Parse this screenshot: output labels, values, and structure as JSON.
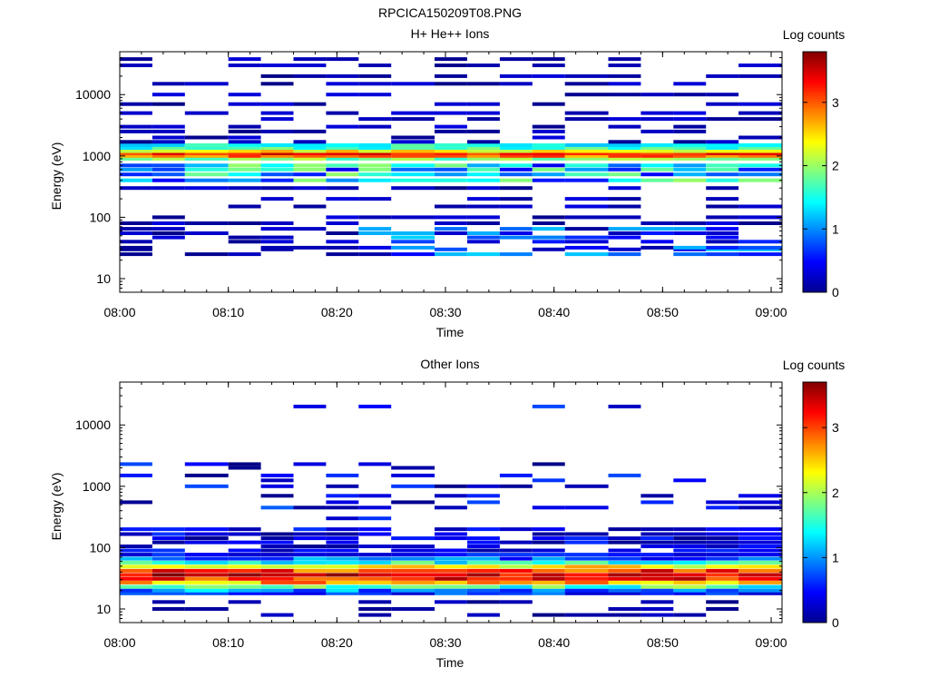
{
  "figure": {
    "title": "RPCICA150209T08.PNG",
    "scale_label": "Log counts"
  },
  "chart_data": [
    {
      "type": "heatmap",
      "title": "H+ He++ Ions",
      "xlabel": "Time",
      "ylabel": "Energy (eV)",
      "xlim": [
        "08:00",
        "09:01"
      ],
      "x_tick_labels": [
        "08:00",
        "08:10",
        "08:20",
        "08:30",
        "08:40",
        "08:50",
        "09:00"
      ],
      "yscale": "log",
      "ylim": [
        6,
        50000
      ],
      "y_tick_labels": [
        "10",
        "100",
        "1000",
        "10000"
      ],
      "colorbar": {
        "label": "Log counts",
        "range": [
          0,
          3.8
        ],
        "tick_labels": [
          "0",
          "1",
          "2",
          "3"
        ],
        "colormap": "jet"
      },
      "time_bins": [
        "08:00",
        "08:03",
        "08:06",
        "08:10",
        "08:13",
        "08:16",
        "08:19",
        "08:22",
        "08:25",
        "08:29",
        "08:32",
        "08:35",
        "08:38",
        "08:41",
        "08:45",
        "08:48",
        "08:51",
        "08:54",
        "08:57"
      ],
      "energy_levels_eV": [
        25,
        30,
        32,
        40,
        47,
        55,
        65,
        80,
        100,
        150,
        200,
        300,
        400,
        500,
        600,
        700,
        900,
        1000,
        1100,
        1200,
        1350,
        1500,
        1700,
        2000,
        2500,
        3000,
        4000,
        5000,
        7000,
        10000,
        15000,
        20000,
        30000,
        38000
      ],
      "grid": false
    },
    {
      "type": "heatmap",
      "title": "Other Ions",
      "xlabel": "Time",
      "ylabel": "Energy (eV)",
      "xlim": [
        "08:00",
        "09:01"
      ],
      "x_tick_labels": [
        "08:00",
        "08:10",
        "08:20",
        "08:30",
        "08:40",
        "08:50",
        "09:00"
      ],
      "yscale": "log",
      "ylim": [
        6,
        50000
      ],
      "y_tick_labels": [
        "10",
        "100",
        "1000",
        "10000"
      ],
      "colorbar": {
        "label": "Log counts",
        "range": [
          0,
          3.7
        ],
        "tick_labels": [
          "0",
          "1",
          "2",
          "3"
        ],
        "colormap": "jet"
      },
      "time_bins": [
        "08:00",
        "08:03",
        "08:06",
        "08:10",
        "08:13",
        "08:16",
        "08:19",
        "08:22",
        "08:25",
        "08:29",
        "08:32",
        "08:35",
        "08:38",
        "08:41",
        "08:45",
        "08:48",
        "08:51",
        "08:54",
        "08:57"
      ],
      "energy_levels_eV": [
        8,
        10,
        13,
        18,
        20,
        23,
        27,
        31,
        36,
        42,
        49,
        57,
        66,
        77,
        90,
        105,
        122,
        142,
        166,
        200,
        300,
        450,
        550,
        700,
        1000,
        1250,
        1500,
        2000,
        2300,
        20000
      ],
      "grid": false
    }
  ]
}
